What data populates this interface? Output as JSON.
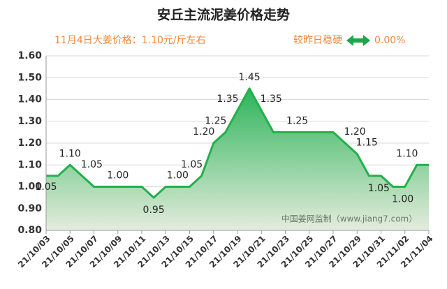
{
  "chart_data": {
    "type": "area",
    "title": "安丘主流泥姜价格走势",
    "subtitle": "11月4日大姜价格：1.10元/斤左右",
    "change_label": "较昨日稳硬",
    "change_value": "0.00%",
    "watermark": "中国姜网监制（www.jiang7.com）",
    "color": "#22b04b",
    "grid": true,
    "categories": [
      "21/10/03",
      null,
      "21/10/05",
      null,
      "21/10/07",
      null,
      "21/10/09",
      null,
      "21/10/11",
      null,
      "21/10/13",
      null,
      "21/10/15",
      null,
      "21/10/17",
      null,
      "21/10/19",
      null,
      "21/10/21",
      null,
      "21/10/23",
      null,
      "21/10/25",
      null,
      "21/10/27",
      null,
      "21/10/29",
      null,
      "21/10/31",
      null,
      "21/11/02",
      null,
      "21/11/04"
    ],
    "values": [
      1.05,
      1.05,
      1.1,
      1.05,
      1.0,
      1.0,
      1.0,
      1.0,
      1.0,
      0.95,
      1.0,
      1.0,
      1.0,
      1.05,
      1.2,
      1.25,
      1.35,
      1.45,
      1.35,
      1.25,
      1.25,
      1.25,
      1.25,
      1.25,
      1.25,
      1.2,
      1.15,
      1.05,
      1.05,
      1.0,
      1.0,
      1.1,
      1.1
    ],
    "value_labels": [
      "1.05",
      null,
      "1.10",
      "1.05",
      null,
      null,
      "1.00",
      null,
      null,
      "0.95",
      null,
      "1.00",
      null,
      "1.05",
      "1.20",
      "1.25",
      "1.35",
      "1.45",
      "1.35",
      null,
      null,
      "1.25",
      null,
      null,
      null,
      "1.20",
      "1.15",
      "1.05",
      null,
      "1.00",
      null,
      "1.10",
      null
    ],
    "ylim": [
      0.8,
      1.6
    ],
    "yticks": [
      {
        "value": 0.8,
        "label": "0.80"
      },
      {
        "value": 0.9,
        "label": "0.90"
      },
      {
        "value": 1.0,
        "label": "1.00"
      },
      {
        "value": 1.1,
        "label": "1.10"
      },
      {
        "value": 1.2,
        "label": "1.20"
      },
      {
        "value": 1.3,
        "label": "1.30"
      },
      {
        "value": 1.4,
        "label": "1.40"
      },
      {
        "value": 1.5,
        "label": "1.50"
      },
      {
        "value": 1.6,
        "label": "1.60"
      }
    ]
  }
}
